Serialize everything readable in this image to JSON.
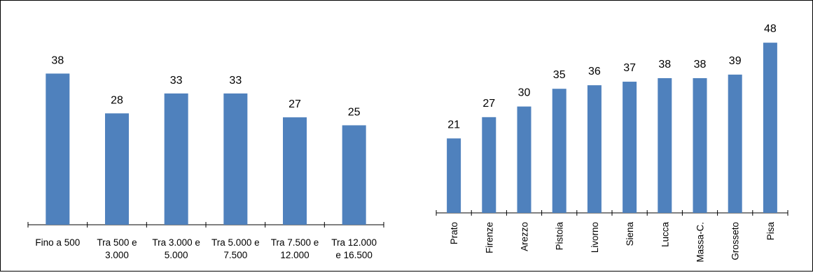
{
  "chart_data": [
    {
      "type": "bar",
      "categories": [
        [
          "Fino a 500"
        ],
        [
          "Tra 500 e",
          "3.000"
        ],
        [
          "Tra 3.000 e",
          "5.000"
        ],
        [
          "Tra 5.000 e",
          "7.500"
        ],
        [
          "Tra 7.500 e",
          "12.000"
        ],
        [
          "Tra 12.000",
          "e 16.500"
        ]
      ],
      "values": [
        38,
        28,
        33,
        33,
        27,
        25
      ],
      "data_labels": [
        "38",
        "28",
        "33",
        "33",
        "27",
        "25"
      ],
      "title": "",
      "xlabel": "",
      "ylabel": "",
      "ylim": [
        0,
        42
      ],
      "grid": false,
      "color": "#4f81bd"
    },
    {
      "type": "bar",
      "categories": [
        "Prato",
        "Firenze",
        "Arezzo",
        "Pistoia",
        "Livorno",
        "Siena",
        "Lucca",
        "Massa-C.",
        "Grosseto",
        "Pisa"
      ],
      "values": [
        21,
        27,
        30,
        35,
        36,
        37,
        38,
        38,
        39,
        48
      ],
      "data_labels": [
        "21",
        "27",
        "30",
        "35",
        "36",
        "37",
        "38",
        "38",
        "39",
        "48"
      ],
      "title": "",
      "xlabel": "",
      "ylabel": "",
      "ylim": [
        0,
        50
      ],
      "grid": false,
      "color": "#4f81bd",
      "tick_label_rotation": "vertical"
    }
  ]
}
